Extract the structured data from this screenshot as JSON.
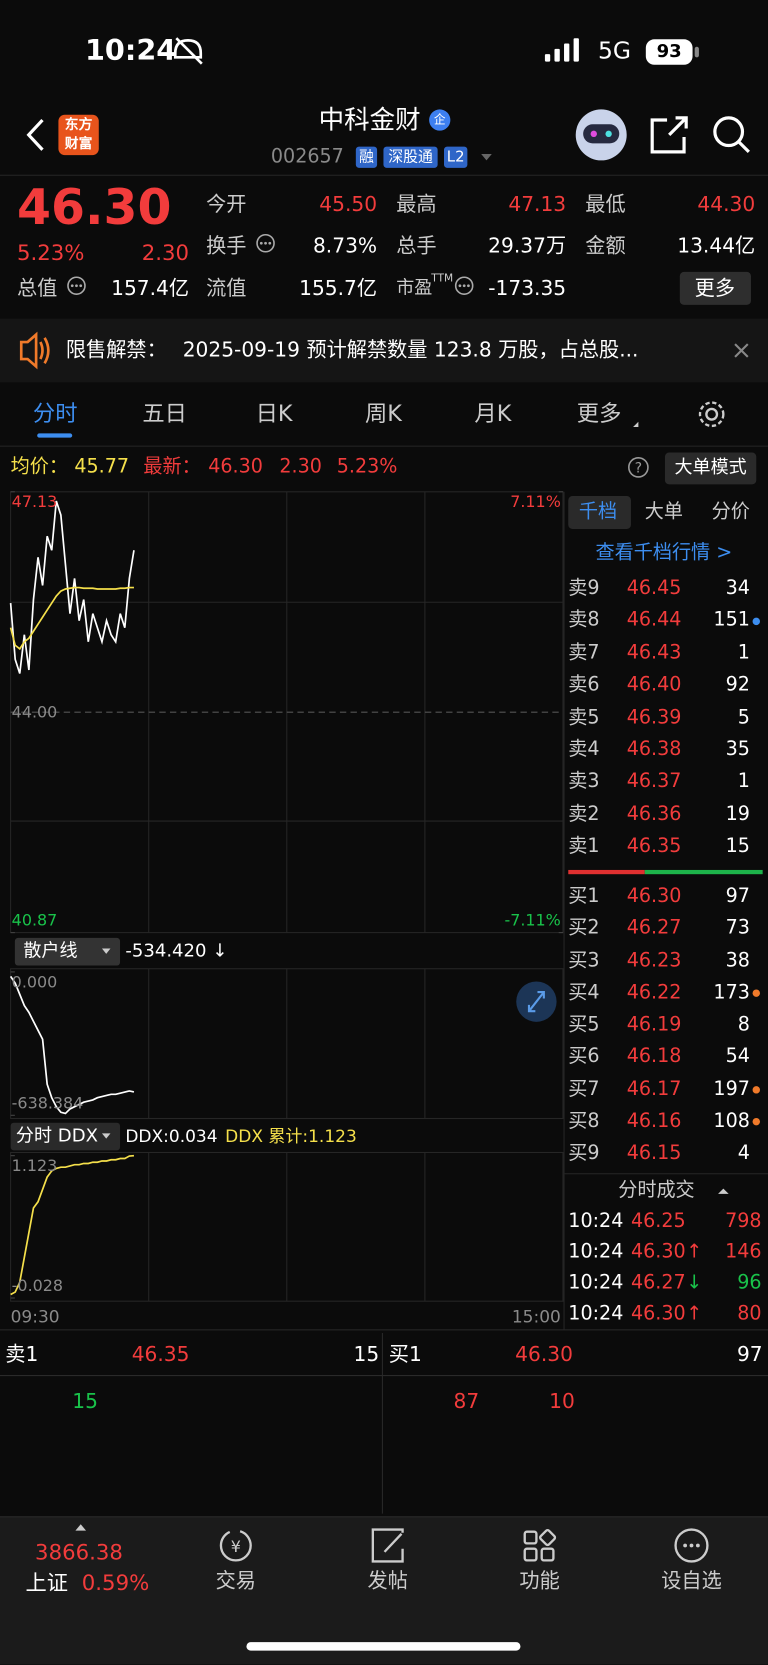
{
  "status_bar": {
    "time": "10:24",
    "network": "5G",
    "battery": "93"
  },
  "header": {
    "logo": [
      "东方",
      "财富"
    ],
    "name": "中科金财",
    "badge": "企",
    "code": "002657",
    "tags": [
      "融",
      "深股通",
      "L2"
    ]
  },
  "quote": {
    "price": "46.30",
    "change_pct": "5.23%",
    "change": "2.30",
    "stats": [
      {
        "label": "今开",
        "value": "45.50"
      },
      {
        "label": "最高",
        "value": "47.13"
      },
      {
        "label": "最低",
        "value": "44.30"
      },
      {
        "label": "换手",
        "value": "8.73%"
      },
      {
        "label": "总手",
        "value": "29.37万"
      },
      {
        "label": "金额",
        "value": "13.44亿"
      },
      {
        "label": "总值",
        "value": "157.4亿"
      },
      {
        "label": "流值",
        "value": "155.7亿"
      },
      {
        "label": "市盈",
        "sup": "TTM",
        "value": "-173.35"
      }
    ],
    "more": "更多"
  },
  "notice": {
    "label": "限售解禁：",
    "text": "2025-09-19 预计解禁数量 123.8 万股，占总股..."
  },
  "tabs": [
    "分时",
    "五日",
    "日K",
    "周K",
    "月K",
    "更多"
  ],
  "info": {
    "avg_label": "均价：",
    "avg": "45.77",
    "last_label": "最新：",
    "last": "46.30",
    "change": "2.30",
    "change_pct": "5.23%",
    "mode": "大单模式"
  },
  "chart_data": [
    {
      "type": "line",
      "ylim": [
        40.87,
        47.13
      ],
      "yticks": [
        47.13,
        {
          "value": 44,
          "label": "44.00"
        },
        40.87
      ],
      "y2lim": [
        -7.11,
        7.11
      ],
      "y2ticks": [
        {
          "value": 7.11,
          "label": "7.11%"
        },
        {
          "value": -7.11,
          "label": "-7.11%"
        }
      ],
      "series": [
        {
          "color": "#ffffff",
          "values": [
            45.55,
            44.75,
            44.55,
            45.1,
            44.6,
            45.6,
            46.2,
            45.8,
            46.5,
            46.3,
            47.0,
            46.8,
            46.1,
            45.4,
            45.9,
            45.3,
            45.6,
            45.0,
            45.4,
            45.2,
            45.0,
            45.3,
            45.1,
            45.0,
            45.4,
            45.2,
            45.9,
            46.3
          ]
        },
        {
          "color": "#f5e04b",
          "values": [
            45.2,
            44.95,
            44.9,
            45.0,
            45.05,
            45.15,
            45.25,
            45.35,
            45.45,
            45.55,
            45.65,
            45.72,
            45.75,
            45.76,
            45.77,
            45.77,
            45.76,
            45.76,
            45.76,
            45.75,
            45.75,
            45.75,
            45.75,
            45.75,
            45.76,
            45.76,
            45.77,
            45.77
          ]
        }
      ]
    },
    {
      "type": "line",
      "title": "散户线",
      "value_label": "-534.420 ↓",
      "ylim": [
        -638.384,
        0
      ],
      "yticks": [
        {
          "value": 0,
          "label": "0.000"
        },
        -638.384
      ],
      "series": [
        {
          "color": "#ffffff",
          "values": [
            -20,
            -50,
            -100,
            -150,
            -180,
            -220,
            -260,
            -300,
            -500,
            -560,
            -600,
            -625,
            -630,
            -610,
            -600,
            -590,
            -580,
            -575,
            -570,
            -560,
            -555,
            -550,
            -545,
            -545,
            -540,
            -535,
            -530,
            -534.42
          ]
        }
      ]
    },
    {
      "type": "line",
      "title": "分时 DDX",
      "readouts": [
        "DDX:0.034",
        "DDX 累计:1.123"
      ],
      "ylim": [
        -0.028,
        1.123
      ],
      "yticks": [
        1.123,
        -0.028
      ],
      "x_labels": [
        "09:30",
        "15:00"
      ],
      "series": [
        {
          "color": "#f5e04b",
          "values": [
            0,
            0.02,
            0.1,
            0.3,
            0.5,
            0.7,
            0.75,
            0.85,
            0.95,
            1.0,
            1.02,
            1.03,
            1.03,
            1.04,
            1.05,
            1.05,
            1.06,
            1.06,
            1.07,
            1.07,
            1.08,
            1.08,
            1.09,
            1.09,
            1.1,
            1.1,
            1.12,
            1.123
          ]
        }
      ]
    }
  ],
  "order_book": {
    "tabs": [
      "千档",
      "大单",
      "分价"
    ],
    "link": "查看千档行情 >",
    "asks": [
      {
        "label": "卖9",
        "price": "46.45",
        "volume": "34"
      },
      {
        "label": "卖8",
        "price": "46.44",
        "volume": "151"
      },
      {
        "label": "卖7",
        "price": "46.43",
        "volume": "1"
      },
      {
        "label": "卖6",
        "price": "46.40",
        "volume": "92"
      },
      {
        "label": "卖5",
        "price": "46.39",
        "volume": "5"
      },
      {
        "label": "卖4",
        "price": "46.38",
        "volume": "35"
      },
      {
        "label": "卖3",
        "price": "46.37",
        "volume": "1"
      },
      {
        "label": "卖2",
        "price": "46.36",
        "volume": "19"
      },
      {
        "label": "卖1",
        "price": "46.35",
        "volume": "15"
      }
    ],
    "bids": [
      {
        "label": "买1",
        "price": "46.30",
        "volume": "97"
      },
      {
        "label": "买2",
        "price": "46.27",
        "volume": "73"
      },
      {
        "label": "买3",
        "price": "46.23",
        "volume": "38"
      },
      {
        "label": "买4",
        "price": "46.22",
        "volume": "173"
      },
      {
        "label": "买5",
        "price": "46.19",
        "volume": "8"
      },
      {
        "label": "买6",
        "price": "46.18",
        "volume": "54"
      },
      {
        "label": "买7",
        "price": "46.17",
        "volume": "197"
      },
      {
        "label": "买8",
        "price": "46.16",
        "volume": "108"
      },
      {
        "label": "买9",
        "price": "46.15",
        "volume": "4"
      }
    ]
  },
  "trades": {
    "title": "分时成交",
    "rows": [
      {
        "time": "10:24",
        "price": "46.25",
        "volume": "798"
      },
      {
        "time": "10:24",
        "price": "46.30",
        "arrow": "↑",
        "volume": "146"
      },
      {
        "time": "10:24",
        "price": "46.27",
        "arrow": "↓",
        "volume": "96"
      },
      {
        "time": "10:24",
        "price": "46.30",
        "arrow": "↑",
        "volume": "80"
      }
    ]
  },
  "bottom": {
    "ask": {
      "label": "卖1",
      "price": "46.35",
      "volume": "15"
    },
    "bid": {
      "label": "买1",
      "price": "46.30",
      "volume": "97"
    },
    "ask_queue": [
      "15"
    ],
    "bid_queue": [
      "87",
      "10"
    ]
  },
  "nav": {
    "index": {
      "value": "3866.38",
      "name": "上证",
      "change": "0.59%"
    },
    "items": [
      "交易",
      "发帖",
      "功能",
      "设自选"
    ]
  }
}
